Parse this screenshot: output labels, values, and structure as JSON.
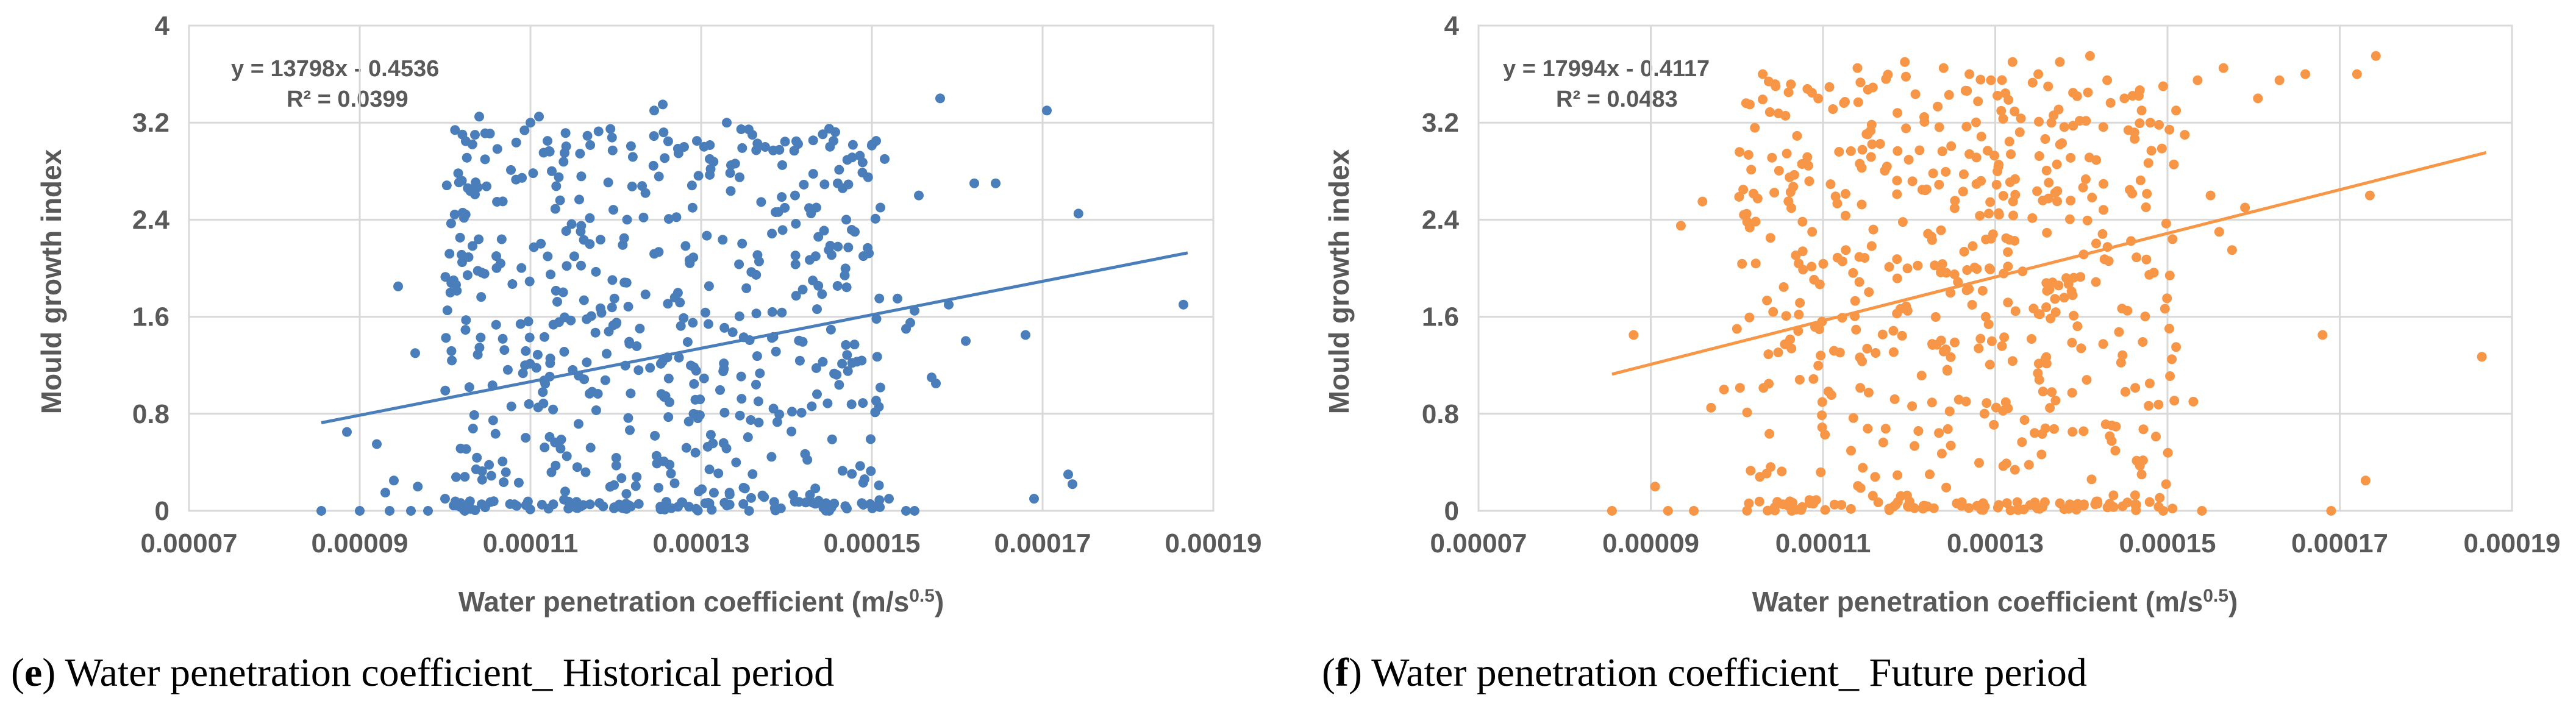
{
  "chart_data": [
    {
      "type": "scatter",
      "color": "#4a7ebb",
      "xlabel": "Water penetration coefficient (m/s",
      "xlabel_sup": "0.5",
      "xlabel_close": ")",
      "ylabel": "Mould growth index",
      "xlim": [
        7e-05,
        0.00019
      ],
      "ylim": [
        0,
        4
      ],
      "x_ticks": [
        "0.00007",
        "0.00009",
        "0.00011",
        "0.00013",
        "0.00015",
        "0.00017",
        "0.00019"
      ],
      "y_ticks": [
        "0",
        "0.8",
        "1.6",
        "2.4",
        "3.2",
        "4"
      ],
      "grid": true,
      "trendline": {
        "slope": 13798,
        "intercept": -0.4536,
        "x_range": [
          8.55e-05,
          0.000187
        ]
      },
      "equation": "y = 13798x - 0.4536",
      "r_squared": "R² = 0.0399",
      "caption_bold": "e",
      "caption_rest": "Water penetration coefficient_ Historical period",
      "series_seed": 11,
      "points": [
        [
          8.55e-05,
          0.0
        ],
        [
          8.85e-05,
          0.65
        ],
        [
          9e-05,
          0.0
        ],
        [
          9.2e-05,
          0.55
        ],
        [
          9.3e-05,
          0.15
        ],
        [
          9.35e-05,
          0.0
        ],
        [
          9.4e-05,
          0.25
        ],
        [
          9.45e-05,
          1.85
        ],
        [
          9.6e-05,
          0.0
        ],
        [
          9.65e-05,
          1.3
        ],
        [
          9.68e-05,
          0.2
        ],
        [
          9.8e-05,
          0.0
        ],
        [
          0.0001,
          0.1
        ],
        [
          0.000101,
          1.9
        ],
        [
          0.000102,
          2.05
        ],
        [
          0.000104,
          3.25
        ],
        [
          0.0001035,
          3.1
        ],
        [
          0.000106,
          2.1
        ],
        [
          0.00011,
          3.2
        ],
        [
          0.000111,
          3.25
        ],
        [
          0.000112,
          3.05
        ],
        [
          0.0001125,
          2.8
        ],
        [
          0.000114,
          2.95
        ],
        [
          0.0001245,
          3.3
        ],
        [
          0.0001255,
          3.35
        ],
        [
          0.000128,
          3.0
        ],
        [
          0.0001295,
          3.05
        ],
        [
          0.000131,
          2.9
        ],
        [
          0.000133,
          3.2
        ],
        [
          0.0001345,
          2.75
        ],
        [
          0.000136,
          3.1
        ],
        [
          0.0001375,
          3.0
        ],
        [
          0.0001395,
          2.85
        ],
        [
          0.000145,
          3.15
        ],
        [
          0.0001455,
          3.05
        ],
        [
          0.000141,
          2.6
        ],
        [
          0.0001435,
          2.5
        ],
        [
          0.000146,
          2.7
        ],
        [
          0.000147,
          2.4
        ],
        [
          0.000148,
          2.3
        ],
        [
          0.000149,
          2.1
        ],
        [
          0.0001505,
          3.05
        ],
        [
          0.000151,
          2.5
        ],
        [
          0.0001515,
          2.9
        ],
        [
          0.000153,
          1.75
        ],
        [
          0.000154,
          1.5
        ],
        [
          0.0001545,
          1.55
        ],
        [
          0.000155,
          1.65
        ],
        [
          0.0001555,
          2.6
        ],
        [
          0.000157,
          1.1
        ],
        [
          0.0001575,
          1.05
        ],
        [
          0.000158,
          3.4
        ],
        [
          0.000159,
          1.7
        ],
        [
          0.000161,
          1.4
        ],
        [
          0.000162,
          2.7
        ],
        [
          0.0001645,
          2.7
        ],
        [
          0.000168,
          1.45
        ],
        [
          0.000169,
          0.1
        ],
        [
          0.0001705,
          3.3
        ],
        [
          0.000173,
          0.3
        ],
        [
          0.0001735,
          0.22
        ],
        [
          0.0001742,
          2.45
        ],
        [
          0.0001865,
          1.7
        ],
        [
          0.000154,
          0.0
        ],
        [
          0.000152,
          0.1
        ],
        [
          0.000149,
          0.05
        ],
        [
          0.000145,
          0.0
        ],
        [
          0.000155,
          0.0
        ]
      ]
    },
    {
      "type": "scatter",
      "color": "#f79646",
      "xlabel": "Water penetration coefficient (m/s",
      "xlabel_sup": "0.5",
      "xlabel_close": ")",
      "ylabel": "Mould growth index",
      "xlim": [
        7e-05,
        0.00019
      ],
      "ylim": [
        0,
        4
      ],
      "x_ticks": [
        "0.00007",
        "0.00009",
        "0.00011",
        "0.00013",
        "0.00015",
        "0.00017",
        "0.00019"
      ],
      "y_ticks": [
        "0",
        "0.8",
        "1.6",
        "2.4",
        "3.2",
        "4"
      ],
      "grid": true,
      "trendline": {
        "slope": 17994,
        "intercept": -0.4117,
        "x_range": [
          8.55e-05,
          0.000187
        ]
      },
      "equation": "y = 17994x - 0.4117",
      "r_squared": "R² = 0.0483",
      "caption_bold": "f",
      "caption_rest": "Water penetration coefficient_ Future period",
      "series_seed": 29,
      "points": [
        [
          8.55e-05,
          0.0
        ],
        [
          8.8e-05,
          1.45
        ],
        [
          9.05e-05,
          0.2
        ],
        [
          9.2e-05,
          0.0
        ],
        [
          9.35e-05,
          2.35
        ],
        [
          9.5e-05,
          0.0
        ],
        [
          9.6e-05,
          2.55
        ],
        [
          9.7e-05,
          0.85
        ],
        [
          9.85e-05,
          1.0
        ],
        [
          0.0001,
          1.5
        ],
        [
          0.0001015,
          3.35
        ],
        [
          0.000103,
          3.6
        ],
        [
          0.0001045,
          3.5
        ],
        [
          0.000106,
          3.45
        ],
        [
          0.000114,
          3.65
        ],
        [
          0.0001195,
          3.7
        ],
        [
          0.000124,
          3.65
        ],
        [
          0.000127,
          3.6
        ],
        [
          0.0001295,
          3.55
        ],
        [
          0.000132,
          3.7
        ],
        [
          0.000135,
          3.6
        ],
        [
          0.0001375,
          3.7
        ],
        [
          0.000141,
          3.75
        ],
        [
          0.000143,
          3.55
        ],
        [
          0.000145,
          3.4
        ],
        [
          0.000147,
          3.3
        ],
        [
          0.000148,
          3.2
        ],
        [
          0.0001495,
          3.5
        ],
        [
          0.000151,
          3.3
        ],
        [
          0.000152,
          3.1
        ],
        [
          0.0001535,
          3.55
        ],
        [
          0.000155,
          2.6
        ],
        [
          0.000156,
          2.3
        ],
        [
          0.0001565,
          3.65
        ],
        [
          0.0001575,
          2.15
        ],
        [
          0.000159,
          2.5
        ],
        [
          0.0001605,
          3.4
        ],
        [
          0.000163,
          3.55
        ],
        [
          0.000166,
          3.6
        ],
        [
          0.000168,
          1.45
        ],
        [
          0.000169,
          0.0
        ],
        [
          0.000172,
          3.6
        ],
        [
          0.000173,
          0.25
        ],
        [
          0.0001735,
          2.6
        ],
        [
          0.0001742,
          3.75
        ],
        [
          0.0001865,
          1.27
        ],
        [
          0.000153,
          0.9
        ],
        [
          0.000151,
          1.35
        ],
        [
          0.0001505,
          1.25
        ],
        [
          0.000154,
          0.0
        ],
        [
          0.0001495,
          0.0
        ],
        [
          0.000147,
          0.3
        ]
      ]
    }
  ]
}
